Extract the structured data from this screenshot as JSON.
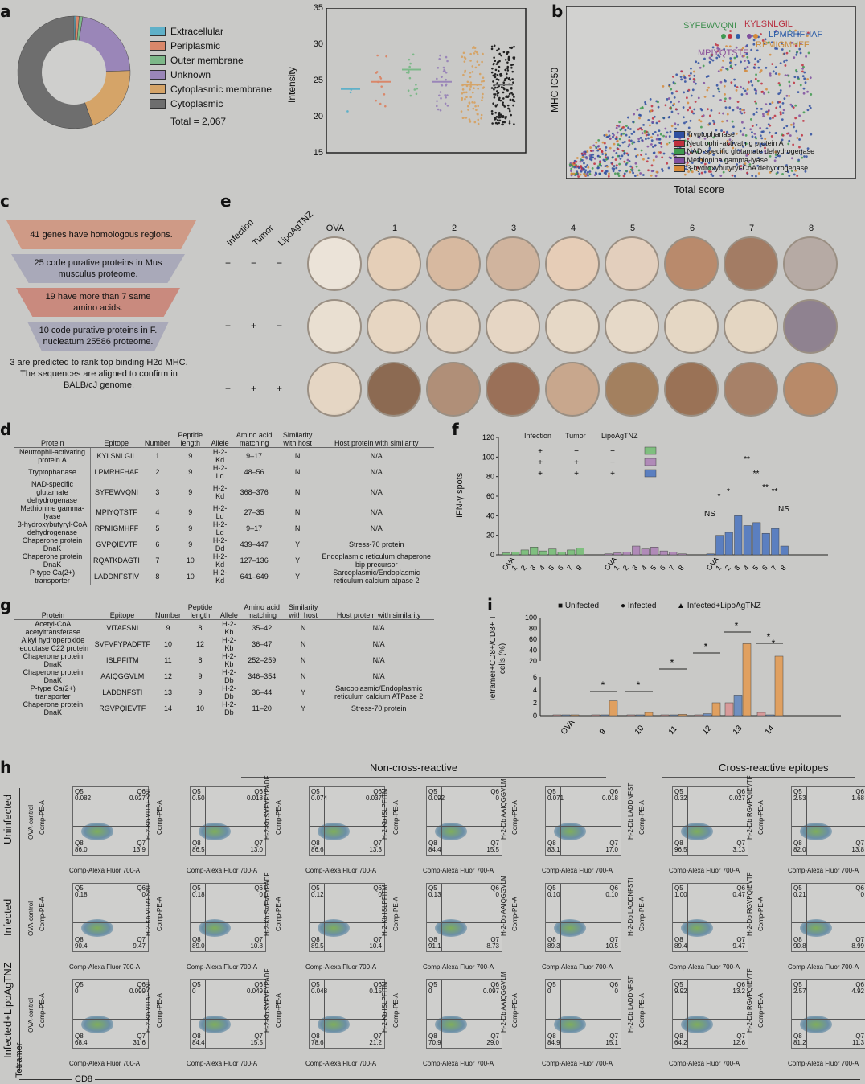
{
  "panel_labels": {
    "a": "a",
    "b": "b",
    "c": "c",
    "d": "d",
    "e": "e",
    "f": "f",
    "g": "g",
    "h": "h",
    "i": "i"
  },
  "panel_a": {
    "legend": [
      {
        "label": "Extracellular",
        "color": "#5fb0c8"
      },
      {
        "label": "Periplasmic",
        "color": "#d9876a"
      },
      {
        "label": "Outer membrane",
        "color": "#7db889"
      },
      {
        "label": "Unknown",
        "color": "#9a86b8"
      },
      {
        "label": "Cytoplasmic membrane",
        "color": "#d5a468"
      },
      {
        "label": "Cytoplasmic",
        "color": "#6e6e6e"
      }
    ],
    "total_label": "Total = 2,067",
    "donut_fractions": [
      0.005,
      0.01,
      0.01,
      0.22,
      0.2,
      0.555
    ],
    "ylabel": "Intensity",
    "yticks": [
      "35",
      "30",
      "25",
      "20",
      "15"
    ]
  },
  "panel_b": {
    "ylabel": "MHC IC50",
    "xlabel": "Total score",
    "peptides": [
      {
        "text": "SYFEWVQNI",
        "color": "#3f8f4f"
      },
      {
        "text": "KYLSNLGIL",
        "color": "#b83040"
      },
      {
        "text": "LPMRHFHAF",
        "color": "#2f5fa8"
      },
      {
        "text": "MPIYQTSTF",
        "color": "#8a4f9a"
      },
      {
        "text": "RPMIGMHFF",
        "color": "#c98a3a"
      }
    ],
    "legend": [
      {
        "label": "Tryptophanase",
        "color": "#2f4fa0"
      },
      {
        "label": "Neutrophil-activating protein A",
        "color": "#c0303f"
      },
      {
        "label": "NAD-specific glutamate dehydrogenase",
        "color": "#3f9a4f"
      },
      {
        "label": "Methionine gamma-lyase",
        "color": "#7f4f9f"
      },
      {
        "label": "3-hydroxybutyryl-CoA dehydrogenase",
        "color": "#d58a3a"
      }
    ]
  },
  "panel_c": {
    "steps": [
      "41 genes have homologous regions.",
      "25 code purative proteins in Mus musculus proteome.",
      "19 have more than 7 same amino acids.",
      "10 code purative proteins in F. nucleatum 25586 proteome.",
      "3 are predicted to rank top binding H2d MHC. The sequences are aligned to confirm in BALB/cJ genome."
    ]
  },
  "panel_e": {
    "row_headers": [
      "Infection",
      "Tumor",
      "LipoAgTNZ"
    ],
    "columns": [
      "OVA",
      "1",
      "2",
      "3",
      "4",
      "5",
      "6",
      "7",
      "8"
    ],
    "row_signs": [
      [
        "+",
        "−",
        "−"
      ],
      [
        "+",
        "+",
        "−"
      ],
      [
        "+",
        "+",
        "+"
      ]
    ]
  },
  "panel_d": {
    "headers": [
      "Protein",
      "Epitope",
      "Number",
      "Peptide length",
      "Allele",
      "Amino acid matching",
      "Similarity with host",
      "Host protein with similarity"
    ],
    "rows": [
      [
        "Neutrophil-activating protein A",
        "KYLSNLGIL",
        "1",
        "9",
        "H-2-Kd",
        "9–17",
        "N",
        "N/A"
      ],
      [
        "Tryptophanase",
        "LPMRHFHAF",
        "2",
        "9",
        "H-2-Ld",
        "48–56",
        "N",
        "N/A"
      ],
      [
        "NAD-specific glutamate dehydrogenase",
        "SYFEWVQNI",
        "3",
        "9",
        "H-2-Kd",
        "368–376",
        "N",
        "N/A"
      ],
      [
        "Methionine gamma-lyase",
        "MPIYQTSTF",
        "4",
        "9",
        "H-2-Ld",
        "27–35",
        "N",
        "N/A"
      ],
      [
        "3-hydroxybutyryl-CoA dehydrogenase",
        "RPMIGMHFF",
        "5",
        "9",
        "H-2-Ld",
        "9–17",
        "N",
        "N/A"
      ],
      [
        "Chaperone protein DnaK",
        "GVPQIEVTF",
        "6",
        "9",
        "H-2-Dd",
        "439–447",
        "Y",
        "Stress-70 protein"
      ],
      [
        "Chaperone protein DnaK",
        "RQATKDAGTI",
        "7",
        "10",
        "H-2-Kd",
        "127–136",
        "Y",
        "Endoplasmic reticulum chaperone bip precursor"
      ],
      [
        "P-type Ca(2+) transporter",
        "LADDNFSTIV",
        "8",
        "10",
        "H-2-Kd",
        "641–649",
        "Y",
        "Sarcoplasmic/Endoplasmic reticulum calcium atpase 2"
      ]
    ]
  },
  "panel_g": {
    "headers": [
      "Protein",
      "Epitope",
      "Number",
      "Peptide length",
      "Allele",
      "Amino acid matching",
      "Similarity with host",
      "Host protein with similarity"
    ],
    "rows": [
      [
        "Acetyl-CoA acetyltransferase",
        "VITAFSNI",
        "9",
        "8",
        "H-2-Kb",
        "35–42",
        "N",
        "N/A"
      ],
      [
        "Alkyl hydroperoxide reductase C22 protein",
        "SVFVFYPADFTF",
        "10",
        "12",
        "H-2-Kb",
        "36–47",
        "N",
        "N/A"
      ],
      [
        "Chaperone protein DnaK",
        "ISLPFITM",
        "11",
        "8",
        "H-2-Kb",
        "252–259",
        "N",
        "N/A"
      ],
      [
        "Chaperone protein DnaK",
        "AAIQGGVLM",
        "12",
        "9",
        "H-2-Db",
        "346–354",
        "N",
        "N/A"
      ],
      [
        "P-type Ca(2+) transporter",
        "LADDNFSTI",
        "13",
        "9",
        "H-2-Db",
        "36–44",
        "Y",
        "Sarcoplasmic/Endoplasmic reticulum calcium ATPase 2"
      ],
      [
        "Chaperone protein DnaK",
        "RGVPQIEVTF",
        "14",
        "10",
        "H-2-Db",
        "11–20",
        "Y",
        "Stress-70 protein"
      ]
    ]
  },
  "panel_f": {
    "ylabel": "IFN-γ spots",
    "yticks": [
      "120",
      "100",
      "80",
      "60",
      "40",
      "20",
      "0"
    ],
    "legend_headers": [
      "Infection",
      "Tumor",
      "LipoAgTNZ"
    ],
    "xticks": [
      "OVA",
      "1",
      "2",
      "3",
      "4",
      "5",
      "6",
      "7",
      "8"
    ],
    "annotations": [
      "NS",
      "*",
      "*",
      "***",
      "**",
      "**",
      "**",
      "**",
      "NS"
    ]
  },
  "panel_i": {
    "legend": [
      "Unifected",
      "Infected",
      "Infected+LipoAgTNZ"
    ],
    "ylabel": "Tetramer+CD8+/CD8+ T cells (%)",
    "yticks_top": [
      "100",
      "80",
      "60",
      "40",
      "20"
    ],
    "yticks_bottom": [
      "6",
      "4",
      "2",
      "0"
    ],
    "xticks": [
      "OVA",
      "9",
      "10",
      "11",
      "12",
      "13",
      "14"
    ],
    "stars": [
      "*",
      "*",
      "*",
      "*",
      "*",
      "*",
      "*"
    ]
  },
  "panel_h": {
    "group_left": "Non-cross-reactive",
    "group_right": "Cross-reactive epitopes",
    "rows": [
      "Uninfected",
      "Infected",
      "Infected+LipoAgTNZ"
    ],
    "row_axis": "Tetramer",
    "col_axis": "CD8",
    "xlabel": "Comp-Alexa Fluor 700-A",
    "ylabel": "Comp-PE-A",
    "columns": [
      "OVA-control",
      "H-2-Kb VITAFSNI",
      "H-2-Kb SVFVFYPADF",
      "H-2-Kb ISLPFITM",
      "H-2-Db AAIQGGVLM",
      "H-2-Db LADDNFSTI",
      "H-2-Db RGVPQIEVTF"
    ],
    "values": [
      [
        [
          "0.082",
          "0.027",
          "86.0",
          "13.9"
        ],
        [
          "0.50",
          "0.018",
          "86.5",
          "13.0"
        ],
        [
          "0.074",
          "0.037",
          "86.6",
          "13.3"
        ],
        [
          "0.092",
          "0",
          "84.4",
          "15.5"
        ],
        [
          "0.071",
          "0.018",
          "83.1",
          "17.0"
        ],
        [
          "0.32",
          "0.027",
          "96.5",
          "3.13"
        ],
        [
          "2.53",
          "1.68",
          "82.0",
          "13.8"
        ]
      ],
      [
        [
          "0.18",
          "0",
          "90.4",
          "9.47"
        ],
        [
          "0.18",
          "0",
          "89.0",
          "10.8"
        ],
        [
          "0.12",
          "0",
          "89.5",
          "10.4"
        ],
        [
          "0.13",
          "0",
          "91.1",
          "8.73"
        ],
        [
          "0.10",
          "0.10",
          "89.3",
          "10.5"
        ],
        [
          "1.00",
          "0.47",
          "89.4",
          "9.47"
        ],
        [
          "0.21",
          "0",
          "90.8",
          "8.99"
        ]
      ],
      [
        [
          "0",
          "0.099",
          "68.4",
          "31.6"
        ],
        [
          "0",
          "0.049",
          "84.4",
          "15.5"
        ],
        [
          "0.048",
          "0.15",
          "78.6",
          "21.2"
        ],
        [
          "0",
          "0.097",
          "70.9",
          "29.0"
        ],
        [
          "0",
          "0",
          "84.9",
          "15.1"
        ],
        [
          "9.92",
          "13.2",
          "64.2",
          "12.6"
        ],
        [
          "2.57",
          "4.92",
          "81.2",
          "11.3"
        ]
      ]
    ]
  }
}
